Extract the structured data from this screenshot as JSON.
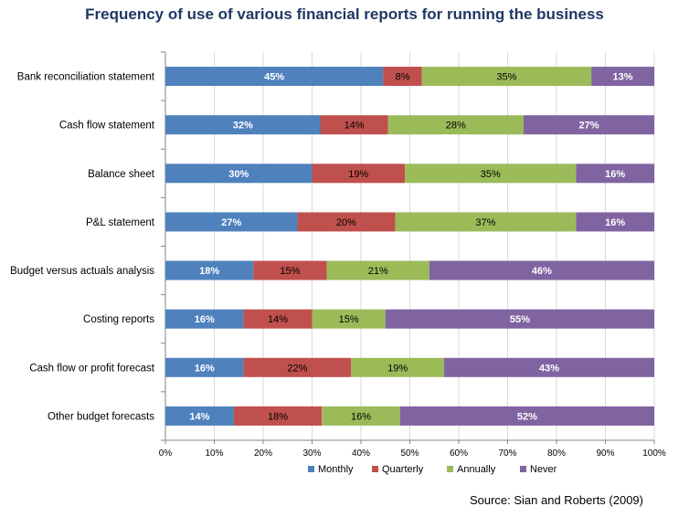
{
  "chart_data": {
    "type": "bar",
    "orientation": "horizontal",
    "stacked": true,
    "percent_stacked": true,
    "title": "Frequency of use of various financial reports for running the business",
    "categories": [
      "Bank reconciliation statement",
      "Cash flow statement",
      "Balance sheet",
      "P&L statement",
      "Budget versus actuals analysis",
      "Costing reports",
      "Cash flow or profit forecast",
      "Other budget forecasts"
    ],
    "series": [
      {
        "name": "Monthly",
        "color": "#4f81bd",
        "values": [
          45,
          32,
          30,
          27,
          18,
          16,
          16,
          14
        ],
        "labels": [
          "45%",
          "32%",
          "30%",
          "27%",
          "18%",
          "16%",
          "16%",
          "14%"
        ]
      },
      {
        "name": "Quarterly",
        "color": "#c0504d",
        "values": [
          8,
          14,
          19,
          20,
          15,
          14,
          22,
          18
        ],
        "labels": [
          "8%",
          "14%",
          "19%",
          "20%",
          "15%",
          "14%",
          "22%",
          "18%"
        ]
      },
      {
        "name": "Annually",
        "color": "#9bbb59",
        "values": [
          35,
          28,
          35,
          37,
          21,
          15,
          19,
          16
        ],
        "labels": [
          "35%",
          "28%",
          "35%",
          "37%",
          "21%",
          "15%",
          "19%",
          "16%"
        ]
      },
      {
        "name": "Never",
        "color": "#8064a2",
        "values": [
          13,
          27,
          16,
          16,
          46,
          55,
          43,
          52
        ],
        "labels": [
          "13%",
          "27%",
          "16%",
          "16%",
          "46%",
          "55%",
          "43%",
          "52%"
        ]
      }
    ],
    "x_ticks": [
      "0%",
      "10%",
      "20%",
      "30%",
      "40%",
      "50%",
      "60%",
      "70%",
      "80%",
      "90%",
      "100%"
    ],
    "xlim": [
      0,
      100
    ],
    "grid": true,
    "legend_position": "bottom",
    "source": "Source: Sian and Roberts (2009)"
  }
}
